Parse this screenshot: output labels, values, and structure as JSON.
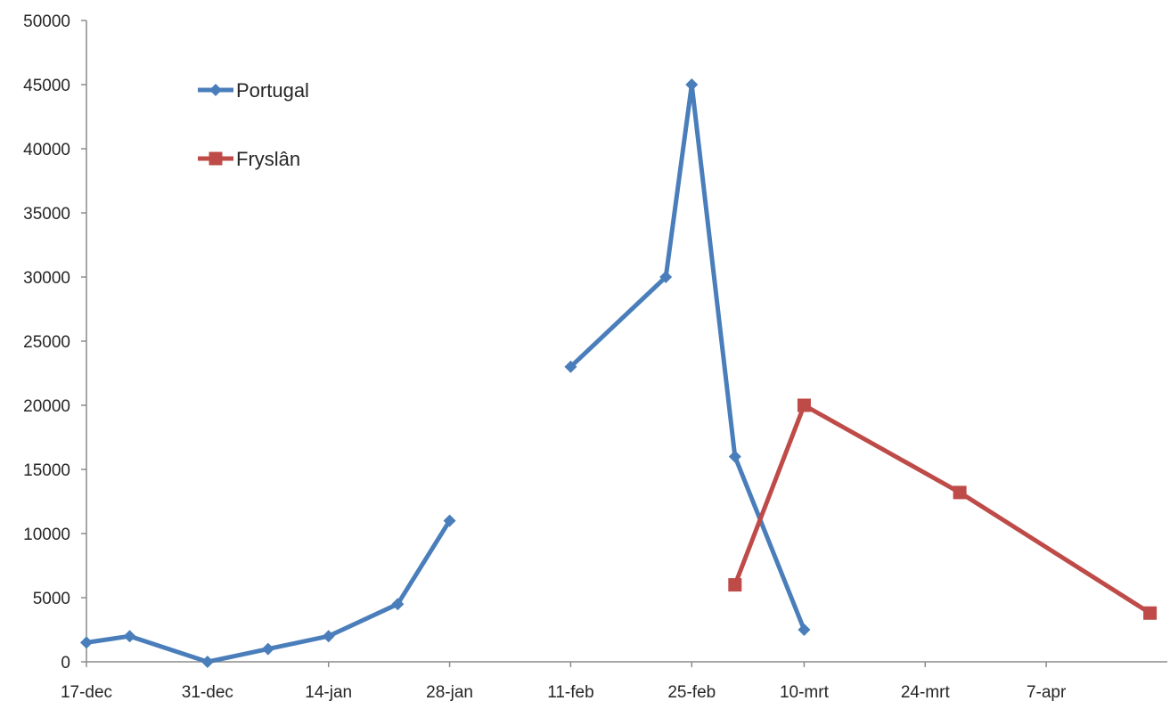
{
  "chart_data": {
    "type": "line",
    "title": "",
    "xlabel": "",
    "ylabel": "",
    "ylim": [
      0,
      50000
    ],
    "yticks": [
      0,
      5000,
      10000,
      15000,
      20000,
      25000,
      30000,
      35000,
      40000,
      45000,
      50000
    ],
    "xlim": [
      "2012-12-17",
      "2013-04-21"
    ],
    "xticks": [
      {
        "date": "2012-12-17",
        "label": "17-dec"
      },
      {
        "date": "2012-12-31",
        "label": "31-dec"
      },
      {
        "date": "2013-01-14",
        "label": "14-jan"
      },
      {
        "date": "2013-01-28",
        "label": "28-jan"
      },
      {
        "date": "2013-02-11",
        "label": "11-feb"
      },
      {
        "date": "2013-02-25",
        "label": "25-feb"
      },
      {
        "date": "2013-03-10",
        "label": "10-mrt"
      },
      {
        "date": "2013-03-24",
        "label": "24-mrt"
      },
      {
        "date": "2013-04-07",
        "label": "7-apr"
      }
    ],
    "grid": false,
    "legend_position": "top-left",
    "series": [
      {
        "name": "Portugal",
        "color": "#4a7ebb",
        "marker": "diamond",
        "segments": [
          [
            {
              "x": "2012-12-17",
              "y": 1500
            },
            {
              "x": "2012-12-22",
              "y": 2000
            },
            {
              "x": "2012-12-31",
              "y": 0
            },
            {
              "x": "2013-01-07",
              "y": 1000
            },
            {
              "x": "2013-01-14",
              "y": 2000
            },
            {
              "x": "2013-01-22",
              "y": 4500
            },
            {
              "x": "2013-01-28",
              "y": 11000
            }
          ],
          [
            {
              "x": "2013-02-11",
              "y": 23000
            },
            {
              "x": "2013-02-22",
              "y": 30000
            },
            {
              "x": "2013-02-25",
              "y": 45000
            },
            {
              "x": "2013-03-02",
              "y": 16000
            },
            {
              "x": "2013-03-10",
              "y": 2500
            }
          ]
        ]
      },
      {
        "name": "Fryslân",
        "color": "#be4b48",
        "marker": "square",
        "segments": [
          [
            {
              "x": "2013-03-02",
              "y": 6000
            },
            {
              "x": "2013-03-10",
              "y": 20000
            },
            {
              "x": "2013-03-28",
              "y": 13200
            },
            {
              "x": "2013-04-19",
              "y": 3800
            }
          ]
        ]
      }
    ]
  }
}
